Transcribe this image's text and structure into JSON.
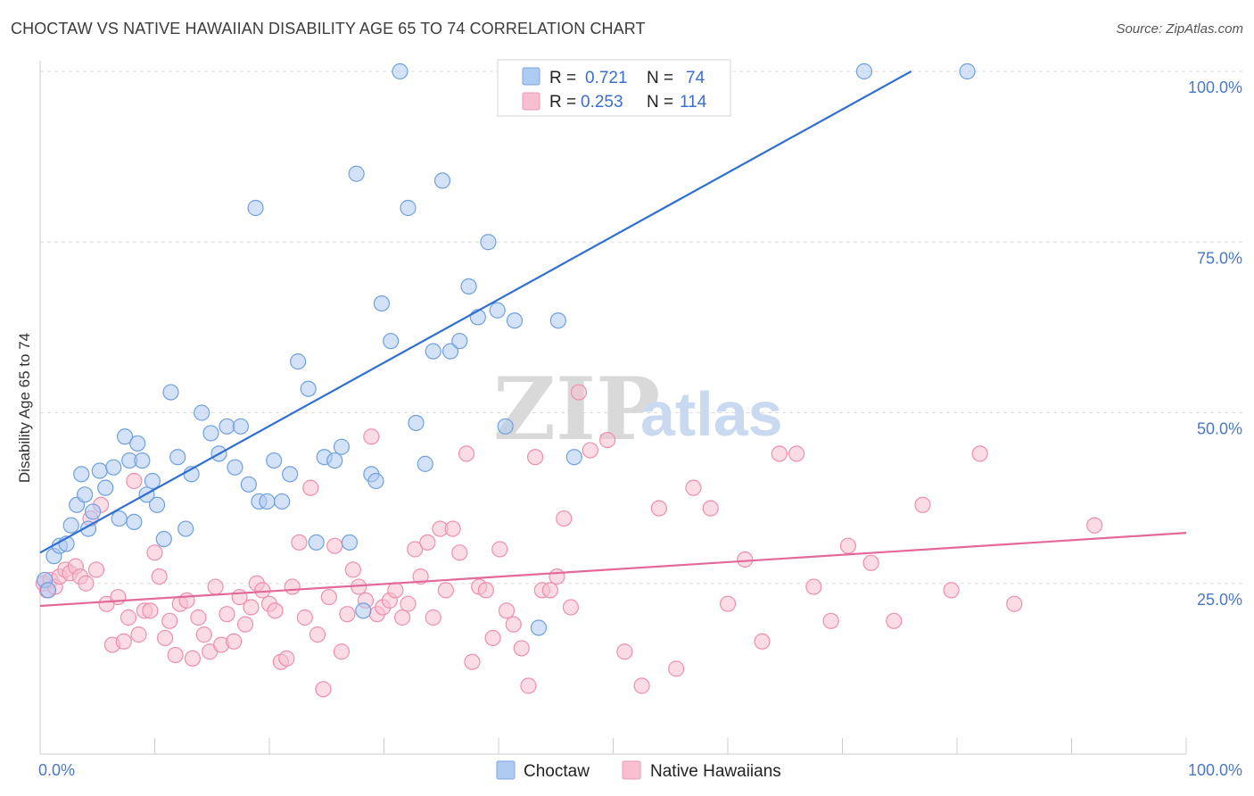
{
  "header": {
    "title": "CHOCTAW VS NATIVE HAWAIIAN DISABILITY AGE 65 TO 74 CORRELATION CHART",
    "source": "Source: ZipAtlas.com"
  },
  "watermark": {
    "zip": "ZIP",
    "atlas": "atlas"
  },
  "legend_top": {
    "rows": [
      {
        "r_label": "R =",
        "r_value": "0.721",
        "n_label": "N =",
        "n_value": "74",
        "color": "#a9c8f2"
      },
      {
        "r_label": "R =",
        "r_value": "0.253",
        "n_label": "N =",
        "n_value": "114",
        "color": "#f7b9cc"
      }
    ]
  },
  "legend_bottom": {
    "items": [
      "Choctaw",
      "Native Hawaiians"
    ]
  },
  "chart_data": {
    "type": "scatter",
    "title": "CHOCTAW VS NATIVE HAWAIIAN DISABILITY AGE 65 TO 74 CORRELATION CHART",
    "xlabel": "",
    "ylabel": "Disability Age 65 to 74",
    "xlim": [
      0,
      100
    ],
    "ylim": [
      0,
      100
    ],
    "x_tick_labels": [
      "0.0%",
      "100.0%"
    ],
    "y_ticks": [
      25,
      50,
      75,
      100
    ],
    "y_tick_labels": [
      "25.0%",
      "50.0%",
      "75.0%",
      "100.0%"
    ],
    "grid": "horizontal dashed",
    "legend_position": "top-center",
    "series": [
      {
        "name": "Choctaw",
        "color": "#6fa0e0",
        "fill": "#aecbf1",
        "trend_color": "#2f6fd0",
        "R": 0.721,
        "N": 74,
        "trend": {
          "x": [
            0,
            76
          ],
          "y": [
            29.5,
            100
          ]
        },
        "x": [
          0.4,
          0.7,
          1.2,
          1.7,
          2.3,
          2.7,
          3.2,
          3.6,
          3.9,
          4.2,
          4.6,
          5.2,
          5.7,
          6.4,
          6.9,
          7.4,
          7.8,
          8.2,
          8.5,
          8.9,
          9.3,
          9.8,
          10.2,
          10.8,
          11.4,
          12.0,
          12.7,
          13.2,
          14.1,
          14.9,
          15.6,
          16.3,
          17.0,
          17.5,
          18.2,
          18.8,
          19.1,
          19.8,
          20.4,
          21.1,
          21.8,
          22.5,
          23.4,
          24.1,
          24.8,
          25.7,
          26.3,
          27.0,
          27.6,
          28.2,
          28.9,
          29.3,
          29.8,
          30.6,
          31.4,
          32.1,
          32.8,
          33.6,
          34.3,
          35.1,
          35.8,
          36.6,
          37.4,
          38.2,
          39.1,
          39.9,
          40.6,
          41.4,
          42.2,
          43.5,
          45.2,
          46.6,
          71.9,
          80.9
        ],
        "y": [
          25.5,
          24.0,
          29.0,
          30.5,
          30.8,
          33.5,
          36.5,
          41.0,
          38.0,
          33.0,
          35.5,
          41.5,
          39.0,
          42.0,
          34.5,
          46.5,
          43.0,
          34.0,
          45.5,
          43.0,
          38.0,
          40.0,
          36.5,
          31.5,
          53.0,
          43.5,
          33.0,
          41.0,
          50.0,
          47.0,
          44.0,
          48.0,
          42.0,
          48.0,
          39.5,
          80.0,
          37.0,
          37.0,
          43.0,
          37.0,
          41.0,
          57.5,
          53.5,
          31.0,
          43.5,
          43.0,
          45.0,
          31.0,
          85.0,
          21.0,
          41.0,
          40.0,
          66.0,
          60.5,
          100.0,
          80.0,
          48.5,
          42.5,
          59.0,
          84.0,
          59.0,
          60.5,
          68.5,
          64.0,
          75.0,
          65.0,
          48.0,
          63.5,
          100.0,
          18.5,
          63.5,
          43.5,
          100.0,
          100.0
        ]
      },
      {
        "name": "Native Hawaiians",
        "color": "#ee8fad",
        "fill": "#f7bfd0",
        "trend_color": "#e2699a",
        "R": 0.253,
        "N": 114,
        "trend": {
          "x": [
            0,
            100
          ],
          "y": [
            21.7,
            32.4
          ]
        },
        "x": [
          0.3,
          0.6,
          0.9,
          1.3,
          1.7,
          2.2,
          2.6,
          3.1,
          3.5,
          4.0,
          4.4,
          4.9,
          5.3,
          5.8,
          6.3,
          6.8,
          7.3,
          7.7,
          8.2,
          8.6,
          9.1,
          9.6,
          10.0,
          10.4,
          10.9,
          11.3,
          11.8,
          12.2,
          12.8,
          13.3,
          13.8,
          14.3,
          14.8,
          15.3,
          15.8,
          16.3,
          16.9,
          17.4,
          17.9,
          18.4,
          18.9,
          19.4,
          20.0,
          20.5,
          21.0,
          21.5,
          22.0,
          22.6,
          23.1,
          23.6,
          24.2,
          24.7,
          25.2,
          25.7,
          26.3,
          26.8,
          27.3,
          27.8,
          28.4,
          28.9,
          29.4,
          29.9,
          30.5,
          31.0,
          31.6,
          32.1,
          32.7,
          33.2,
          33.8,
          34.3,
          34.9,
          35.4,
          36.0,
          36.6,
          37.2,
          37.7,
          38.3,
          38.9,
          39.5,
          40.1,
          40.7,
          41.3,
          42.0,
          42.6,
          43.2,
          43.8,
          44.5,
          45.1,
          45.7,
          46.3,
          47.0,
          48.0,
          49.5,
          51.0,
          52.5,
          54.0,
          55.5,
          57.0,
          58.5,
          60.0,
          61.5,
          63.0,
          64.5,
          66.0,
          67.5,
          69.0,
          70.5,
          72.5,
          74.5,
          77.0,
          79.5,
          82.0,
          85.0,
          92.0
        ],
        "y": [
          25.0,
          24.0,
          25.5,
          24.5,
          26.0,
          27.0,
          26.5,
          27.5,
          26.0,
          25.0,
          34.5,
          27.0,
          36.5,
          22.0,
          16.0,
          23.0,
          16.5,
          20.0,
          40.0,
          17.5,
          21.0,
          21.0,
          29.5,
          26.0,
          17.0,
          19.5,
          14.5,
          22.0,
          22.5,
          14.0,
          20.0,
          17.5,
          15.0,
          24.5,
          16.0,
          20.5,
          16.5,
          23.0,
          19.0,
          21.5,
          25.0,
          24.0,
          22.0,
          21.0,
          13.5,
          14.0,
          24.5,
          31.0,
          20.0,
          39.0,
          17.5,
          9.5,
          23.0,
          30.5,
          15.0,
          20.5,
          27.0,
          24.5,
          22.5,
          46.5,
          20.5,
          21.5,
          22.5,
          24.0,
          20.0,
          22.0,
          30.0,
          26.0,
          31.0,
          20.0,
          33.0,
          24.0,
          33.0,
          29.5,
          44.0,
          13.5,
          24.5,
          24.0,
          17.0,
          30.0,
          21.0,
          19.0,
          15.5,
          10.0,
          43.5,
          24.0,
          24.0,
          26.0,
          34.5,
          21.5,
          53.0,
          44.5,
          46.0,
          15.0,
          10.0,
          36.0,
          12.5,
          39.0,
          36.0,
          22.0,
          28.5,
          16.5,
          44.0,
          44.0,
          24.5,
          19.5,
          30.5,
          28.0,
          19.5,
          36.5,
          24.0,
          44.0,
          22.0,
          33.5
        ]
      }
    ]
  }
}
